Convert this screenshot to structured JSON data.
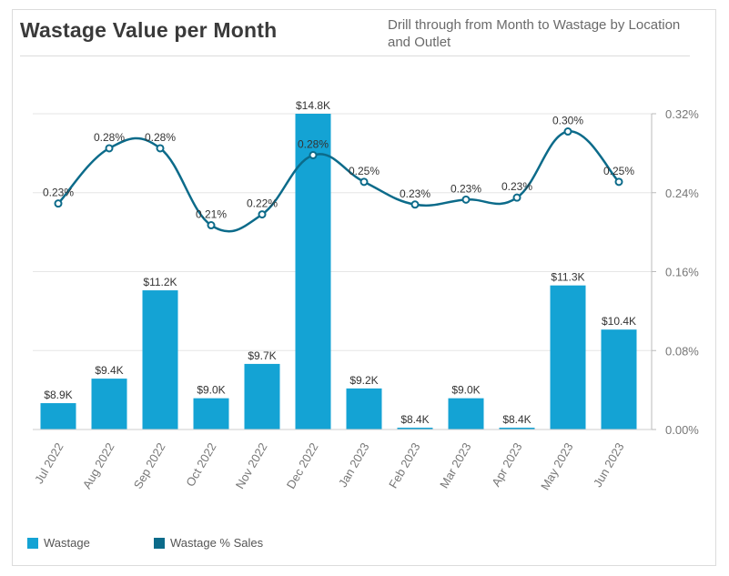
{
  "header": {
    "title": "Wastage Value per Month",
    "subtitle": "Drill through from Month to Wastage by Location and Outlet"
  },
  "colors": {
    "bar": "#14a3d4",
    "line": "#0c6b8a",
    "grid": "#e6e6e6",
    "text": "#333333",
    "axis_text": "#777777"
  },
  "legend": {
    "bar_label": "Wastage",
    "line_label": "Wastage % Sales"
  },
  "chart_data": {
    "type": "bar",
    "categories": [
      "Jul 2022",
      "Aug 2022",
      "Sep 2022",
      "Oct 2022",
      "Nov 2022",
      "Dec 2022",
      "Jan 2023",
      "Feb 2023",
      "Mar 2023",
      "Apr 2023",
      "May 2023",
      "Jun 2023"
    ],
    "series": [
      {
        "name": "Wastage",
        "type": "bar",
        "axis": "left",
        "values": [
          8.9,
          9.4,
          11.2,
          9.0,
          9.7,
          14.8,
          9.2,
          8.4,
          9.0,
          8.4,
          11.3,
          10.4
        ],
        "labels": [
          "$8.9K",
          "$9.4K",
          "$11.2K",
          "$9.0K",
          "$9.7K",
          "$14.8K",
          "$9.2K",
          "$8.4K",
          "$9.0K",
          "$8.4K",
          "$11.3K",
          "$10.4K"
        ]
      },
      {
        "name": "Wastage % Sales",
        "type": "line",
        "axis": "right",
        "values": [
          0.229,
          0.285,
          0.285,
          0.207,
          0.218,
          0.278,
          0.251,
          0.228,
          0.233,
          0.235,
          0.302,
          0.251
        ],
        "labels": [
          "0.23%",
          "0.28%",
          "0.28%",
          "0.21%",
          "0.22%",
          "0.28%",
          "0.25%",
          "0.23%",
          "0.23%",
          "0.23%",
          "0.30%",
          "0.25%"
        ]
      }
    ],
    "left_axis": {
      "range": [
        8.4,
        14.8
      ],
      "ticks_visible": false
    },
    "right_axis": {
      "range": [
        0,
        0.32
      ],
      "ticks": [
        "0.32%",
        "0.24%",
        "0.16%",
        "0.08%",
        "0.00%"
      ]
    },
    "grid": true,
    "legend_position": "bottom-left"
  }
}
